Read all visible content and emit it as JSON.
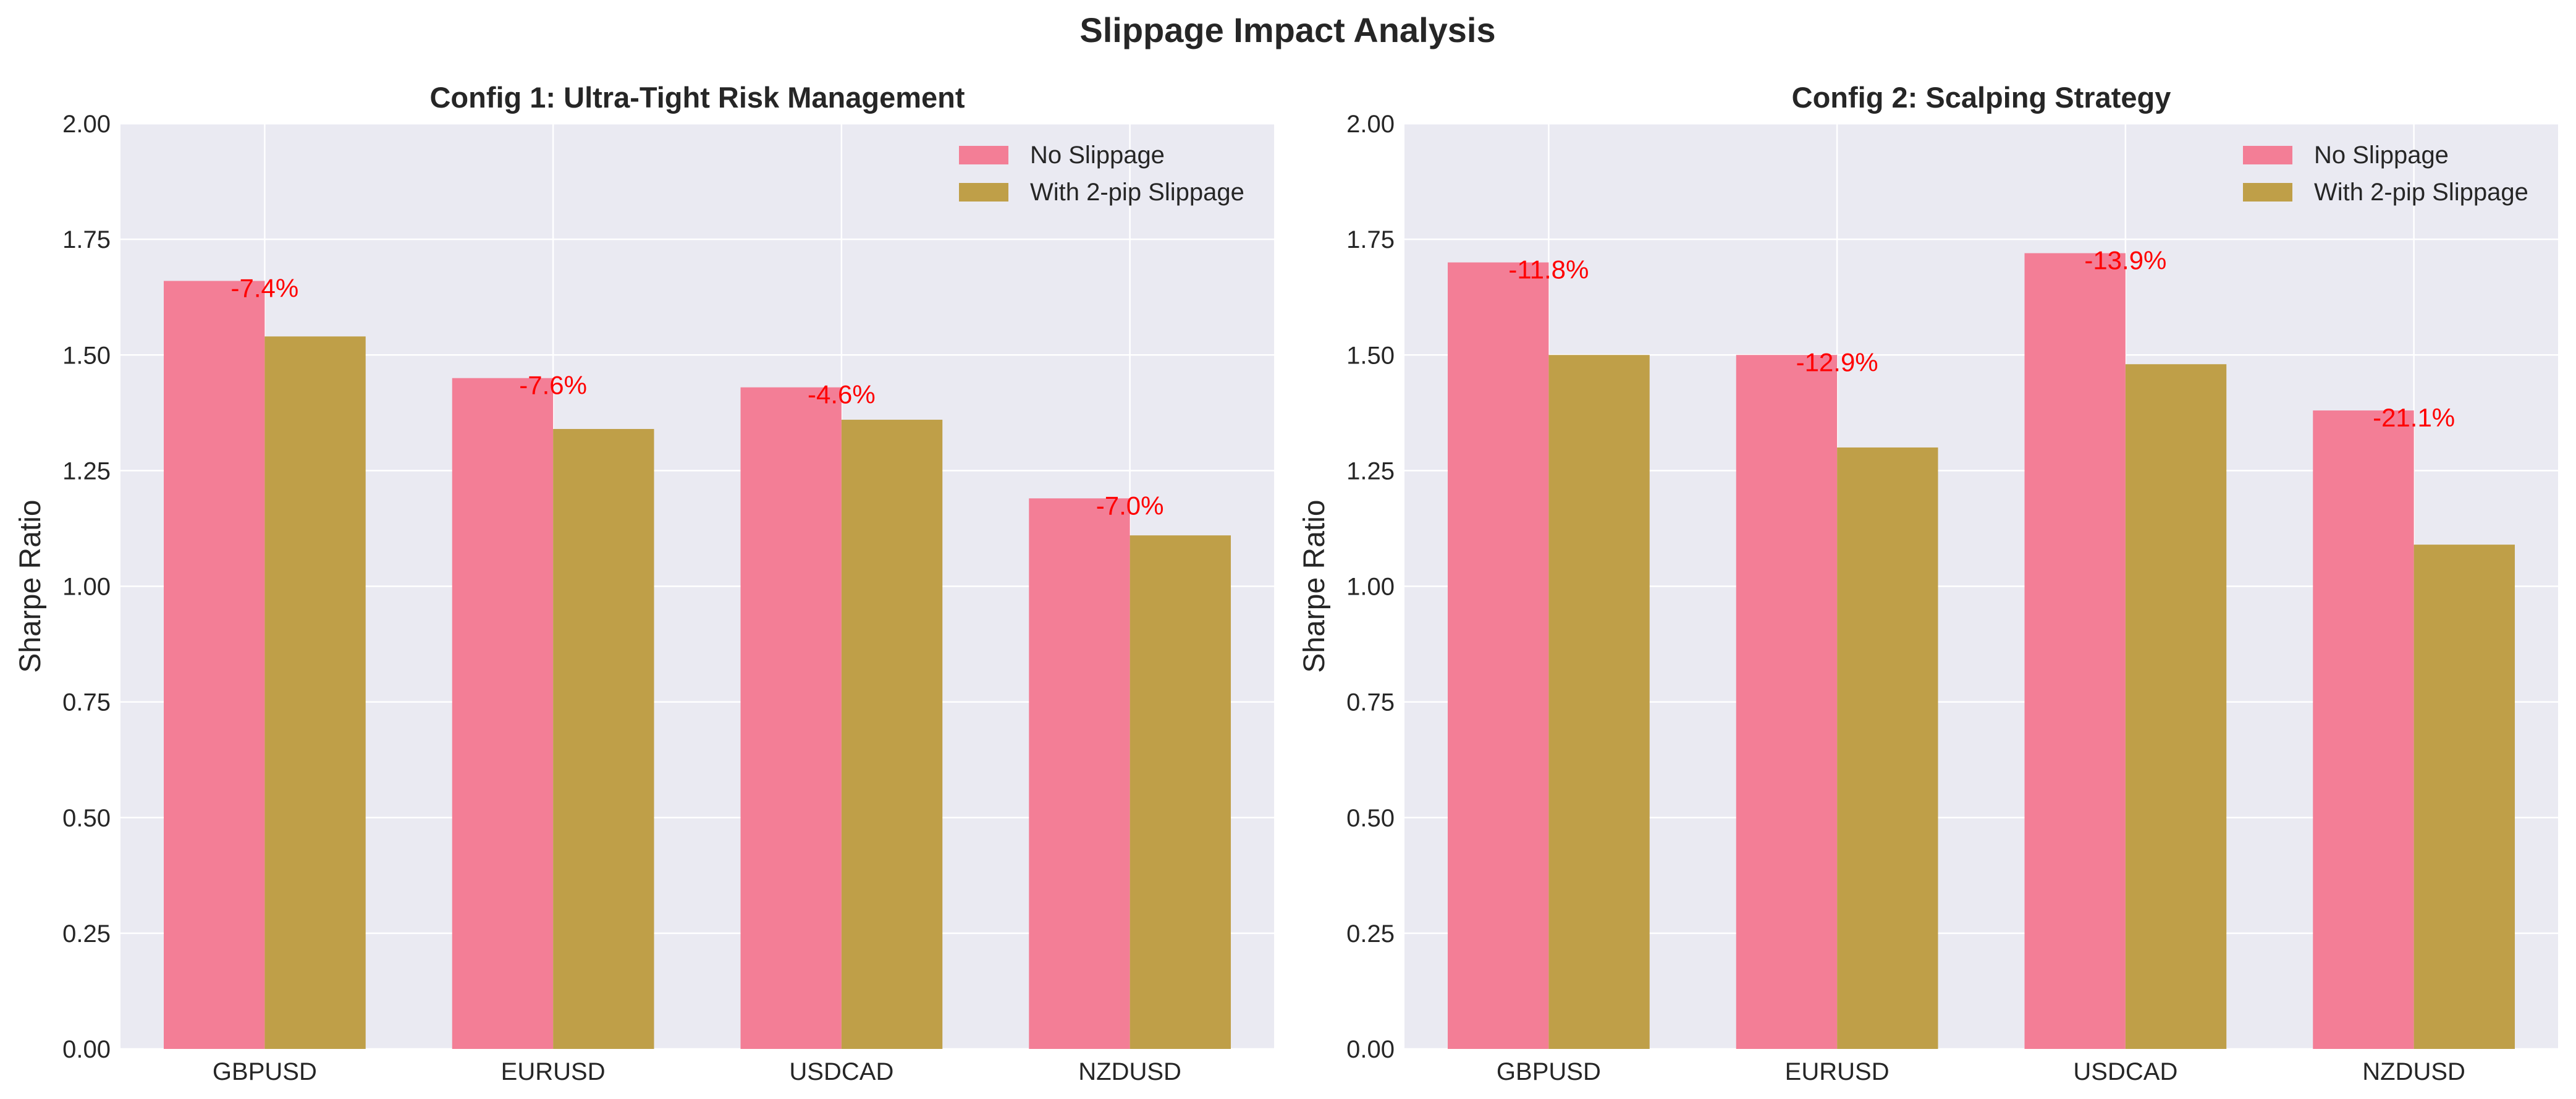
{
  "figure": {
    "title": "Slippage Impact Analysis"
  },
  "colors": {
    "no_slippage": "#f37e96",
    "with_slippage": "#bf9f48",
    "plot_bg": "#eaeaf2",
    "grid": "#ffffff",
    "annotation": "#ff0000"
  },
  "chart_data": [
    {
      "type": "bar",
      "title": "Config 1: Ultra-Tight Risk Management",
      "xlabel": "",
      "ylabel": "Sharpe Ratio",
      "ylim": [
        0,
        2.0
      ],
      "yticks": [
        "0.00",
        "0.25",
        "0.50",
        "0.75",
        "1.00",
        "1.25",
        "1.50",
        "1.75",
        "2.00"
      ],
      "grid": true,
      "legend_position": "top-right",
      "categories": [
        "GBPUSD",
        "EURUSD",
        "USDCAD",
        "NZDUSD"
      ],
      "series": [
        {
          "name": "No Slippage",
          "values": [
            1.66,
            1.45,
            1.43,
            1.19
          ]
        },
        {
          "name": "With 2-pip Slippage",
          "values": [
            1.54,
            1.34,
            1.36,
            1.11
          ]
        }
      ],
      "annotations": [
        "-7.4%",
        "-7.6%",
        "-4.6%",
        "-7.0%"
      ]
    },
    {
      "type": "bar",
      "title": "Config 2: Scalping Strategy",
      "xlabel": "",
      "ylabel": "Sharpe Ratio",
      "ylim": [
        0,
        2.0
      ],
      "yticks": [
        "0.00",
        "0.25",
        "0.50",
        "0.75",
        "1.00",
        "1.25",
        "1.50",
        "1.75",
        "2.00"
      ],
      "grid": true,
      "legend_position": "top-right",
      "categories": [
        "GBPUSD",
        "EURUSD",
        "USDCAD",
        "NZDUSD"
      ],
      "series": [
        {
          "name": "No Slippage",
          "values": [
            1.7,
            1.5,
            1.72,
            1.38
          ]
        },
        {
          "name": "With 2-pip Slippage",
          "values": [
            1.5,
            1.3,
            1.48,
            1.09
          ]
        }
      ],
      "annotations": [
        "-11.8%",
        "-12.9%",
        "-13.9%",
        "-21.1%"
      ]
    }
  ]
}
